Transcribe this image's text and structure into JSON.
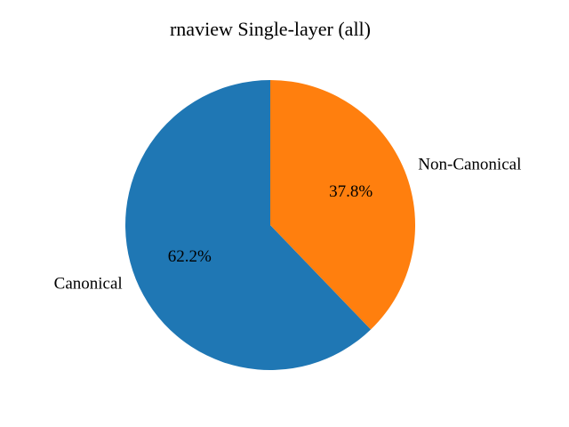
{
  "chart_data": {
    "type": "pie",
    "title": "rnaview Single-layer (all)",
    "slices": [
      {
        "label": "Canonical",
        "value": 62.2,
        "pct_label": "62.2%",
        "color": "#1f77b4"
      },
      {
        "label": "Non-Canonical",
        "value": 37.8,
        "pct_label": "37.8%",
        "color": "#ff7f0e"
      }
    ],
    "start_angle_deg": 90,
    "direction": "counterclockwise",
    "legend": "none"
  }
}
